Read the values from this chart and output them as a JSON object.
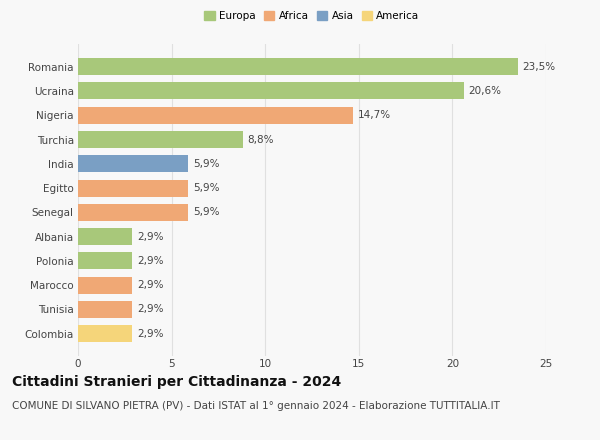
{
  "categories": [
    "Colombia",
    "Tunisia",
    "Marocco",
    "Polonia",
    "Albania",
    "Senegal",
    "Egitto",
    "India",
    "Turchia",
    "Nigeria",
    "Ucraina",
    "Romania"
  ],
  "values": [
    2.9,
    2.9,
    2.9,
    2.9,
    2.9,
    5.9,
    5.9,
    5.9,
    8.8,
    14.7,
    20.6,
    23.5
  ],
  "labels": [
    "2,9%",
    "2,9%",
    "2,9%",
    "2,9%",
    "2,9%",
    "5,9%",
    "5,9%",
    "5,9%",
    "8,8%",
    "14,7%",
    "20,6%",
    "23,5%"
  ],
  "bar_colors": [
    "#f5d57a",
    "#f0a875",
    "#f0a875",
    "#a8c87a",
    "#a8c87a",
    "#f0a875",
    "#f0a875",
    "#7a9fc4",
    "#a8c87a",
    "#f0a875",
    "#a8c87a",
    "#a8c87a"
  ],
  "legend_labels": [
    "Europa",
    "Africa",
    "Asia",
    "America"
  ],
  "legend_colors": [
    "#a8c87a",
    "#f0a875",
    "#7a9fc4",
    "#f5d57a"
  ],
  "title": "Cittadini Stranieri per Cittadinanza - 2024",
  "subtitle": "COMUNE DI SILVANO PIETRA (PV) - Dati ISTAT al 1° gennaio 2024 - Elaborazione TUTTITALIA.IT",
  "xlim": [
    0,
    25
  ],
  "xticks": [
    0,
    5,
    10,
    15,
    20,
    25
  ],
  "background_color": "#f8f8f8",
  "grid_color": "#e0e0e0",
  "title_fontsize": 10,
  "subtitle_fontsize": 7.5,
  "label_fontsize": 7.5,
  "tick_fontsize": 7.5,
  "bar_height": 0.7
}
